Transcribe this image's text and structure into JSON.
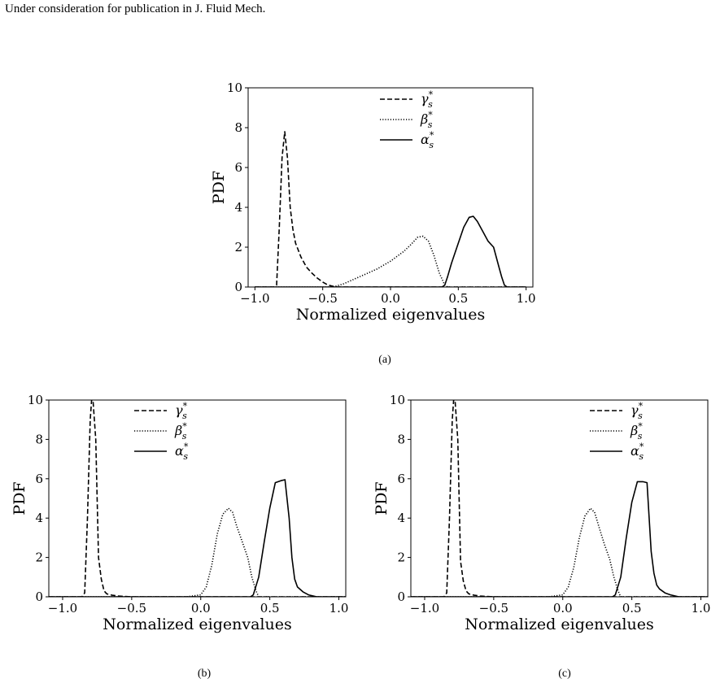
{
  "header": {
    "text": "Under consideration for publication in J. Fluid Mech."
  },
  "figure": {
    "captions": [
      "(a)",
      "(b)",
      "(c)"
    ]
  },
  "chart_data": [
    {
      "type": "line",
      "panel": "(a)",
      "xlabel": "Normalized eigenvalues",
      "ylabel": "PDF",
      "xlim": [
        -1.05,
        1.05
      ],
      "ylim": [
        0,
        10
      ],
      "xticks": [
        -1.0,
        -0.5,
        0.0,
        0.5,
        1.0
      ],
      "xtick_labels": [
        "−1.0",
        "−0.5",
        "0.0",
        "0.5",
        "1.0"
      ],
      "yticks": [
        0,
        2,
        4,
        6,
        8,
        10
      ],
      "ytick_labels": [
        "0",
        "2",
        "4",
        "6",
        "8",
        "10"
      ],
      "grid": false,
      "legend_position": "upper-right",
      "series": [
        {
          "name": "γ*s",
          "linestyle": "dashed",
          "x": [
            -1.0,
            -0.86,
            -0.84,
            -0.82,
            -0.8,
            -0.78,
            -0.76,
            -0.74,
            -0.72,
            -0.7,
            -0.66,
            -0.62,
            -0.58,
            -0.54,
            -0.5,
            -0.46,
            -0.42,
            -0.4,
            -0.36,
            0.0,
            0.5,
            1.0
          ],
          "y": [
            0,
            0,
            0.1,
            3.0,
            6.5,
            7.8,
            6.5,
            4.0,
            2.9,
            2.2,
            1.5,
            1.0,
            0.7,
            0.45,
            0.25,
            0.1,
            0.03,
            0.0,
            0,
            0,
            0,
            0
          ]
        },
        {
          "name": "β*s",
          "linestyle": "dotted",
          "x": [
            -1.0,
            -0.44,
            -0.4,
            -0.35,
            -0.3,
            -0.25,
            -0.2,
            -0.1,
            0.0,
            0.1,
            0.16,
            0.2,
            0.24,
            0.28,
            0.32,
            0.36,
            0.4,
            0.42,
            0.5,
            1.0
          ],
          "y": [
            0,
            0,
            0.05,
            0.15,
            0.3,
            0.45,
            0.6,
            0.9,
            1.3,
            1.8,
            2.2,
            2.5,
            2.55,
            2.3,
            1.6,
            0.7,
            0.1,
            0,
            0,
            0
          ]
        },
        {
          "name": "α*s",
          "linestyle": "solid",
          "x": [
            -1.0,
            0.0,
            0.38,
            0.4,
            0.42,
            0.45,
            0.5,
            0.54,
            0.58,
            0.61,
            0.64,
            0.68,
            0.72,
            0.76,
            0.8,
            0.82,
            0.84,
            0.86,
            1.0
          ],
          "y": [
            0,
            0,
            0,
            0.1,
            0.5,
            1.2,
            2.2,
            3.0,
            3.5,
            3.55,
            3.3,
            2.8,
            2.3,
            2.0,
            1.0,
            0.5,
            0.1,
            0,
            0
          ]
        }
      ]
    },
    {
      "type": "line",
      "panel": "(b)",
      "xlabel": "Normalized eigenvalues",
      "ylabel": "PDF",
      "xlim": [
        -1.1,
        1.05
      ],
      "ylim": [
        0,
        10
      ],
      "xticks": [
        -1.0,
        -0.5,
        0.0,
        0.5,
        1.0
      ],
      "xtick_labels": [
        "−1.0",
        "−0.5",
        "0.0",
        "0.5",
        "1.0"
      ],
      "yticks": [
        0,
        2,
        4,
        6,
        8,
        10
      ],
      "ytick_labels": [
        "0",
        "2",
        "4",
        "6",
        "8",
        "10"
      ],
      "grid": false,
      "legend_position": "upper-center",
      "series": [
        {
          "name": "γ*s",
          "linestyle": "dashed",
          "x": [
            -1.1,
            -0.86,
            -0.84,
            -0.82,
            -0.8,
            -0.79,
            -0.78,
            -0.76,
            -0.74,
            -0.72,
            -0.7,
            -0.68,
            -0.64,
            -0.6,
            -0.56,
            -0.5,
            1.05
          ],
          "y": [
            0,
            0,
            0.2,
            4.0,
            9.0,
            10.0,
            10.0,
            8.0,
            2.0,
            0.9,
            0.3,
            0.15,
            0.08,
            0.04,
            0.02,
            0,
            0
          ]
        },
        {
          "name": "β*s",
          "linestyle": "dotted",
          "x": [
            -1.1,
            -0.1,
            0.0,
            0.04,
            0.08,
            0.12,
            0.16,
            0.2,
            0.23,
            0.26,
            0.3,
            0.34,
            0.37,
            0.4,
            0.42,
            1.05
          ],
          "y": [
            0,
            0,
            0.1,
            0.5,
            1.6,
            3.2,
            4.2,
            4.5,
            4.3,
            3.6,
            2.8,
            2.0,
            1.0,
            0.3,
            0,
            0
          ]
        },
        {
          "name": "α*s",
          "linestyle": "solid",
          "x": [
            -1.1,
            0.36,
            0.38,
            0.42,
            0.46,
            0.5,
            0.54,
            0.58,
            0.61,
            0.64,
            0.66,
            0.68,
            0.7,
            0.74,
            0.78,
            0.84,
            1.05
          ],
          "y": [
            0,
            0,
            0.1,
            1.0,
            2.8,
            4.5,
            5.8,
            5.9,
            5.95,
            4.0,
            2.0,
            0.9,
            0.5,
            0.25,
            0.1,
            0,
            0
          ]
        }
      ]
    },
    {
      "type": "line",
      "panel": "(c)",
      "xlabel": "Normalized eigenvalues",
      "ylabel": "PDF",
      "xlim": [
        -1.1,
        1.05
      ],
      "ylim": [
        0,
        10
      ],
      "xticks": [
        -1.0,
        -0.5,
        0.0,
        0.5,
        1.0
      ],
      "xtick_labels": [
        "−1.0",
        "−0.5",
        "0.0",
        "0.5",
        "1.0"
      ],
      "yticks": [
        0,
        2,
        4,
        6,
        8,
        10
      ],
      "ytick_labels": [
        "0",
        "2",
        "4",
        "6",
        "8",
        "10"
      ],
      "grid": false,
      "legend_position": "upper-right",
      "series": [
        {
          "name": "γ*s",
          "linestyle": "dashed",
          "x": [
            -1.1,
            -0.86,
            -0.84,
            -0.82,
            -0.8,
            -0.79,
            -0.78,
            -0.76,
            -0.74,
            -0.72,
            -0.7,
            -0.68,
            -0.64,
            -0.6,
            -0.56,
            -0.5,
            1.05
          ],
          "y": [
            0,
            0,
            0.2,
            4.0,
            9.0,
            10.0,
            10.0,
            8.0,
            1.8,
            0.8,
            0.3,
            0.15,
            0.08,
            0.04,
            0.02,
            0,
            0
          ]
        },
        {
          "name": "β*s",
          "linestyle": "dotted",
          "x": [
            -1.1,
            -0.1,
            0.0,
            0.04,
            0.08,
            0.12,
            0.16,
            0.2,
            0.23,
            0.26,
            0.3,
            0.34,
            0.37,
            0.4,
            0.42,
            1.05
          ],
          "y": [
            0,
            0,
            0.1,
            0.5,
            1.5,
            3.0,
            4.1,
            4.5,
            4.3,
            3.6,
            2.7,
            1.9,
            1.0,
            0.3,
            0,
            0
          ]
        },
        {
          "name": "α*s",
          "linestyle": "solid",
          "x": [
            -1.1,
            0.36,
            0.38,
            0.42,
            0.46,
            0.5,
            0.54,
            0.58,
            0.61,
            0.64,
            0.66,
            0.68,
            0.7,
            0.74,
            0.78,
            0.84,
            1.05
          ],
          "y": [
            0,
            0,
            0.1,
            1.0,
            3.0,
            4.8,
            5.85,
            5.85,
            5.8,
            2.3,
            1.2,
            0.6,
            0.4,
            0.2,
            0.1,
            0,
            0
          ]
        }
      ]
    }
  ]
}
